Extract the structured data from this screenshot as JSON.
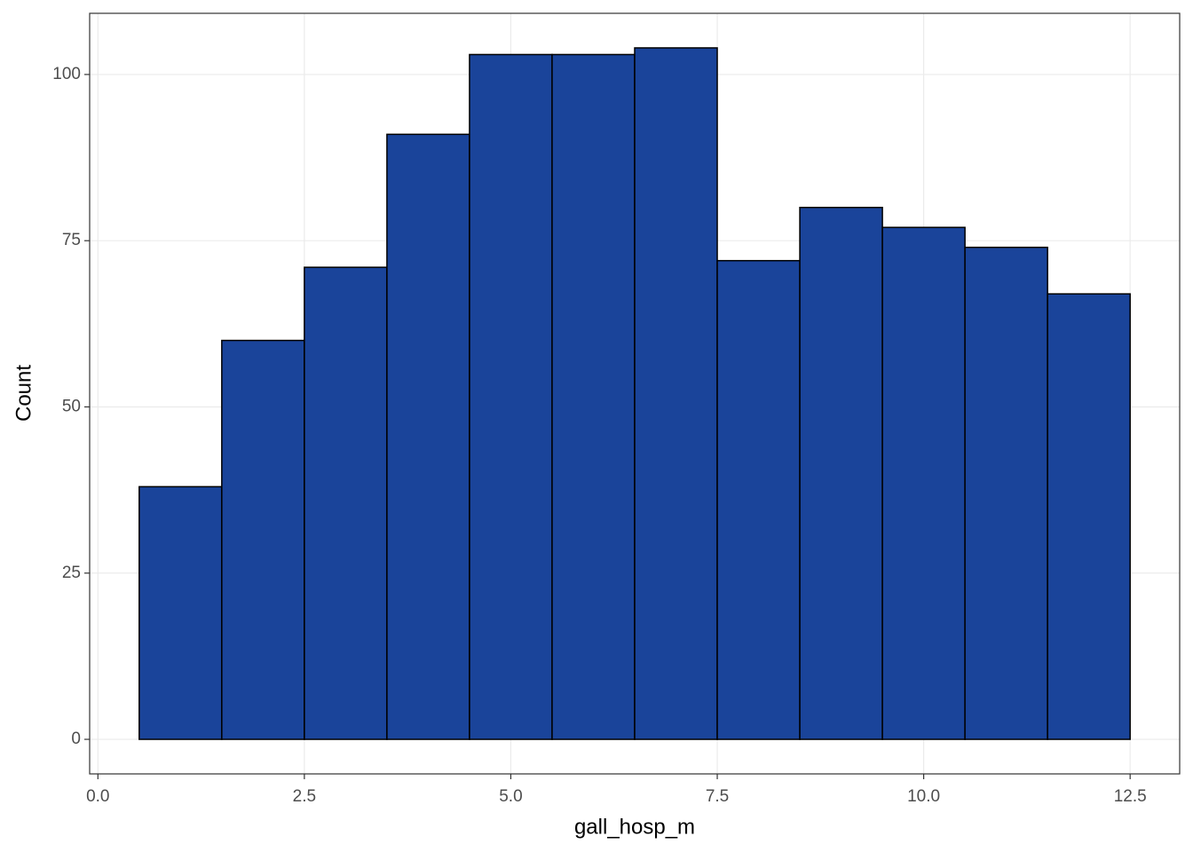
{
  "chart_data": {
    "type": "histogram",
    "x_label": "gall_hosp_m",
    "y_label": "Count",
    "bins": [
      0.5,
      1.5,
      2.5,
      3.5,
      4.5,
      5.5,
      6.5,
      7.5,
      8.5,
      9.5,
      10.5,
      11.5,
      12.5
    ],
    "values": [
      38,
      60,
      71,
      91,
      103,
      103,
      104,
      72,
      80,
      77,
      74,
      67
    ],
    "color": "#1a449a",
    "edge_color": "#000000",
    "xlim": [
      -0.1,
      13.1
    ],
    "ylim": [
      -5.2,
      109.2
    ],
    "xticks": [
      {
        "value": 0,
        "label": "0.0"
      },
      2.5,
      {
        "value": 5,
        "label": "5.0"
      },
      7.5,
      {
        "value": 10,
        "label": "10.0"
      },
      12.5
    ],
    "yticks": [
      0,
      25,
      50,
      75,
      100
    ],
    "grid": true
  }
}
